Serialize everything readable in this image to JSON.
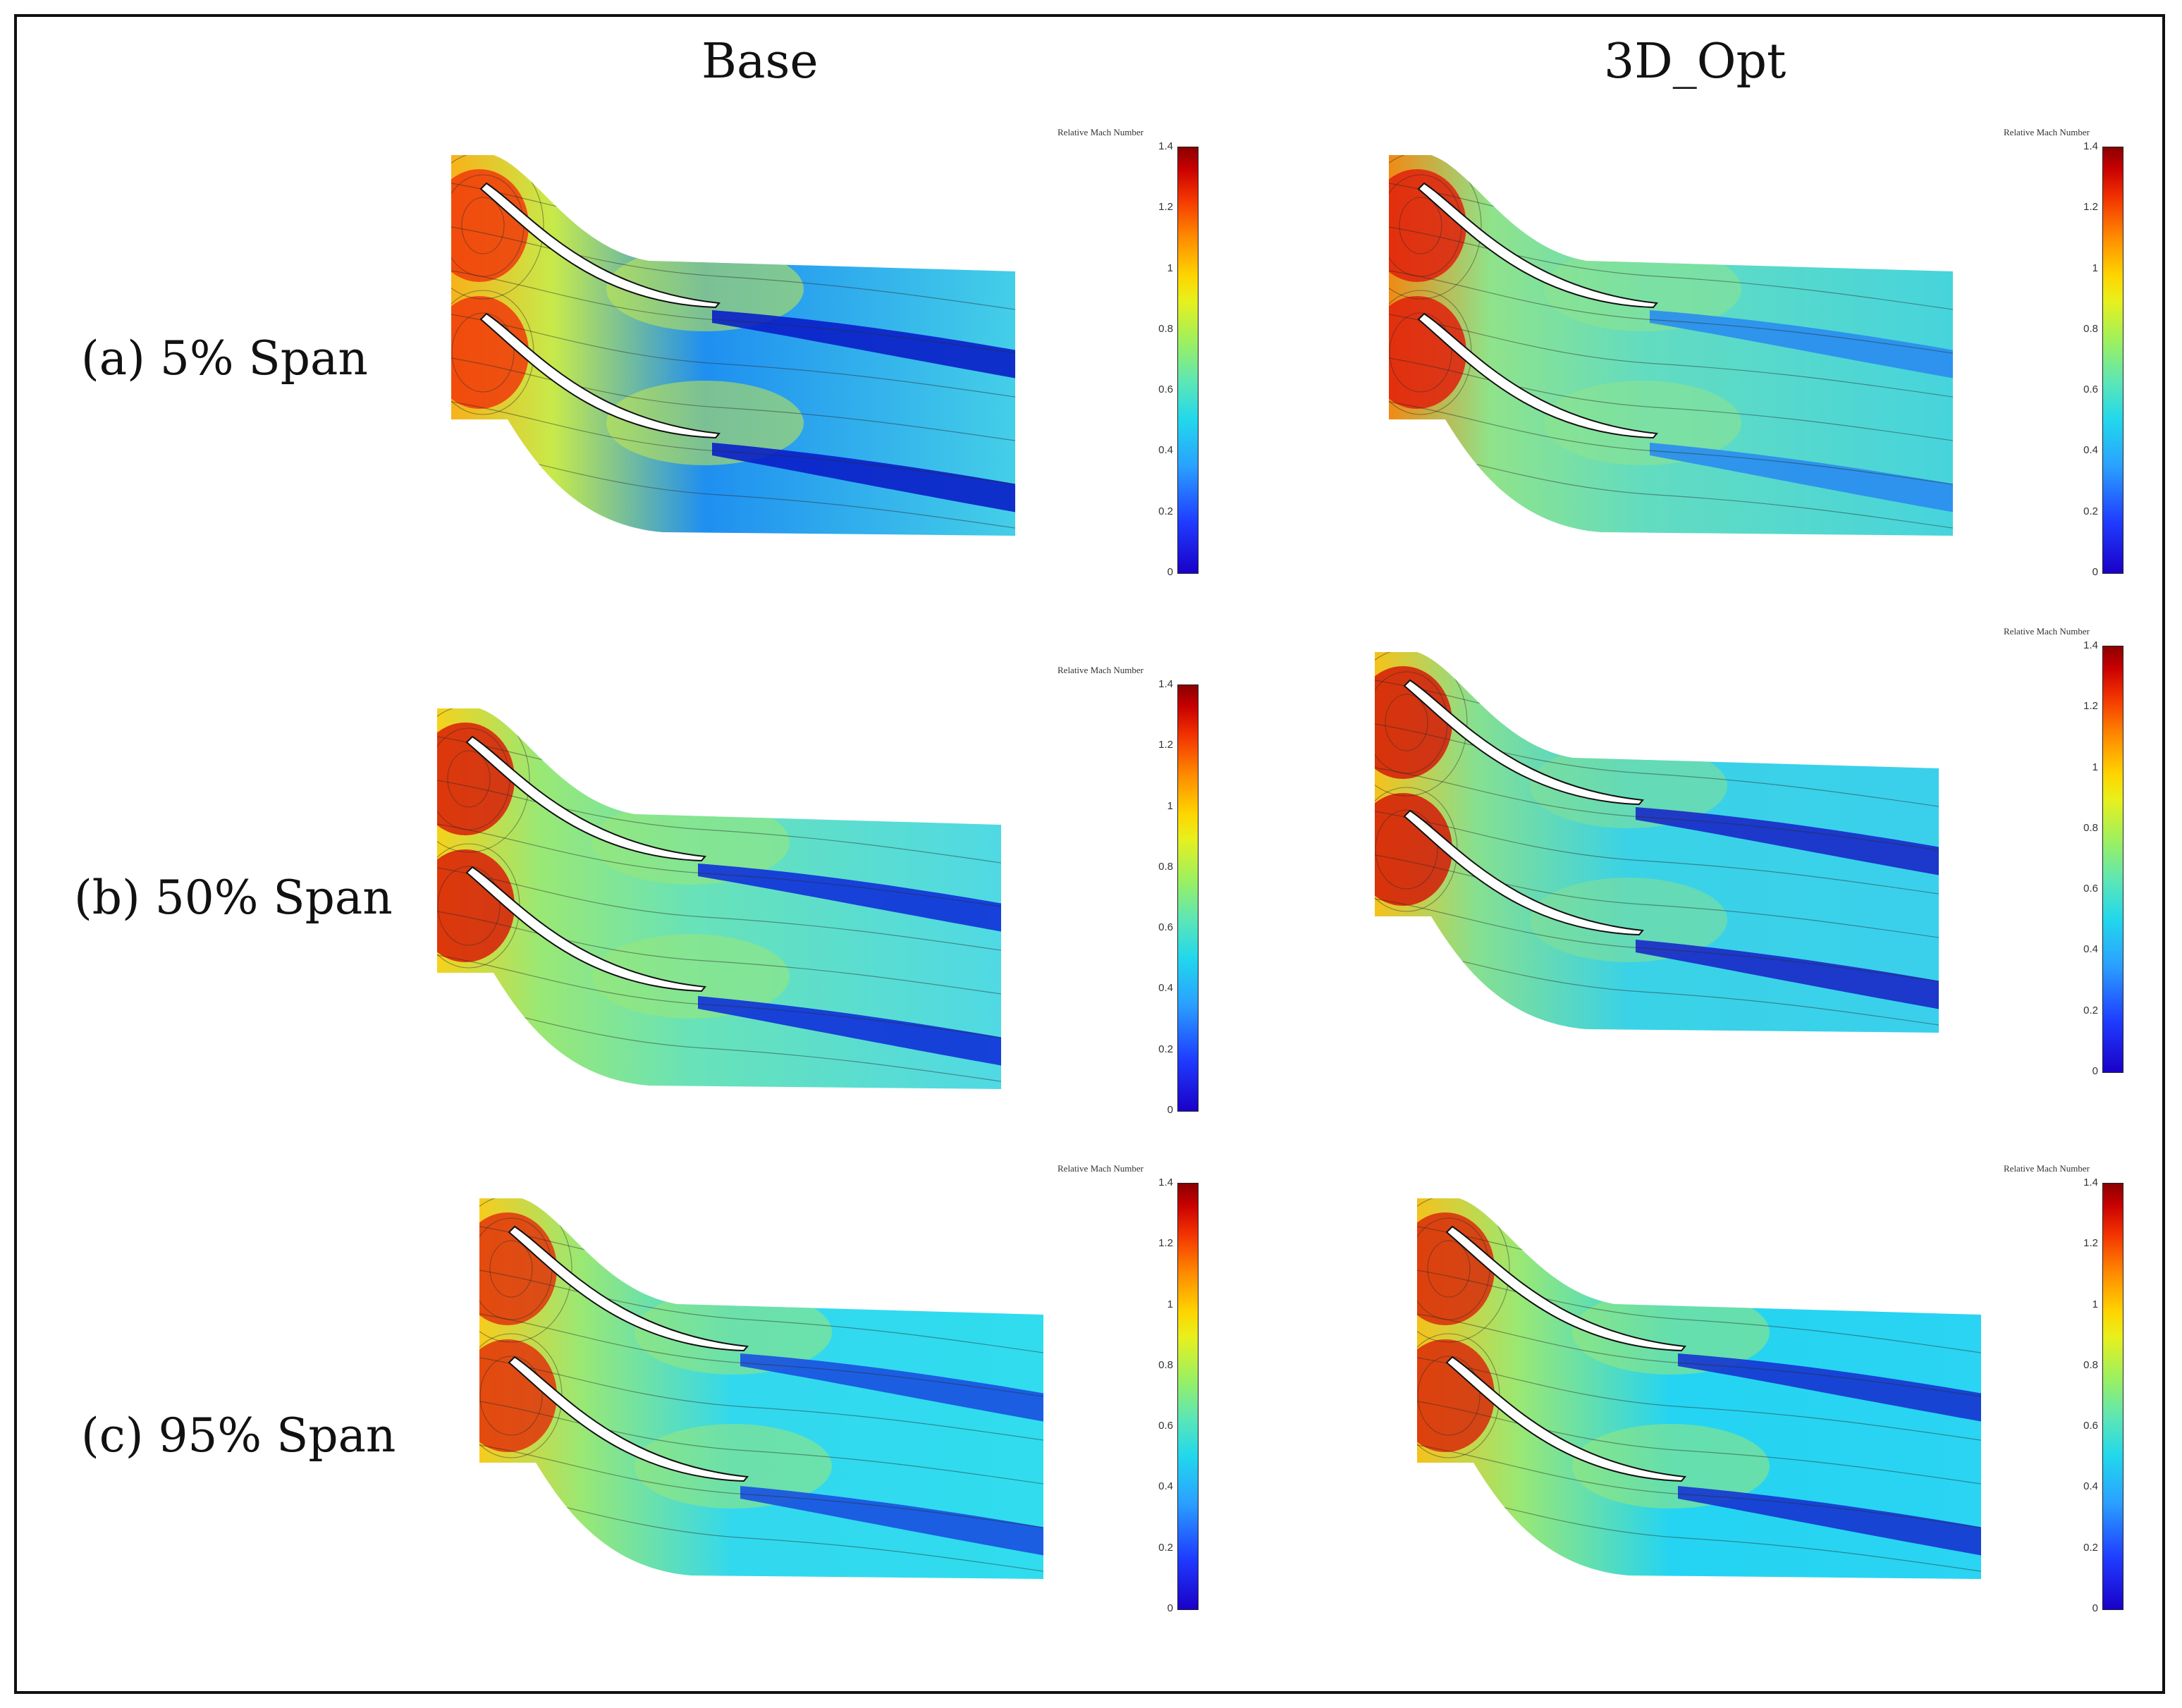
{
  "figure": {
    "column_titles": [
      "Base",
      "3D_Opt"
    ],
    "row_labels": [
      "(a) 5% Span",
      "(b) 50% Span",
      "(c) 95% Span"
    ],
    "legend": {
      "title": "Relative Mach Number",
      "ticks": [
        "1.4",
        "1.2",
        "1",
        "0.8",
        "0.6",
        "0.4",
        "0.2",
        "0"
      ]
    }
  },
  "colors": {
    "blade": "#ffffff",
    "contour_line": "#2a2a2a",
    "frame": "#111111"
  },
  "panels": [
    {
      "id": "a-base",
      "inlet": "#f7b21a",
      "hot": "#f03a0a",
      "mid": "#c7ea4a",
      "passage": "#1f8ff0",
      "wake": "#0a1ec8",
      "outlet": "#44cfe8"
    },
    {
      "id": "a-opt",
      "inlet": "#f08a14",
      "hot": "#e0200c",
      "mid": "#8fe38a",
      "passage": "#63dcc0",
      "wake": "#2a8cf0",
      "outlet": "#46d4dc"
    },
    {
      "id": "b-base",
      "inlet": "#f5d21c",
      "hot": "#d81c08",
      "mid": "#9ae874",
      "passage": "#68e2b8",
      "wake": "#1030d8",
      "outlet": "#4fd9e4"
    },
    {
      "id": "b-opt",
      "inlet": "#f6c21a",
      "hot": "#d41a08",
      "mid": "#86e090",
      "passage": "#3ad2e6",
      "wake": "#1a28c8",
      "outlet": "#3ad0ec"
    },
    {
      "id": "c-base",
      "inlet": "#f6cc1e",
      "hot": "#e0340c",
      "mid": "#9ae874",
      "passage": "#32d8ee",
      "wake": "#1a50e0",
      "outlet": "#30dcee"
    },
    {
      "id": "c-opt",
      "inlet": "#f4c21c",
      "hot": "#d82a0a",
      "mid": "#9ae874",
      "passage": "#24d4f2",
      "wake": "#1634d0",
      "outlet": "#2ad4f2"
    }
  ]
}
